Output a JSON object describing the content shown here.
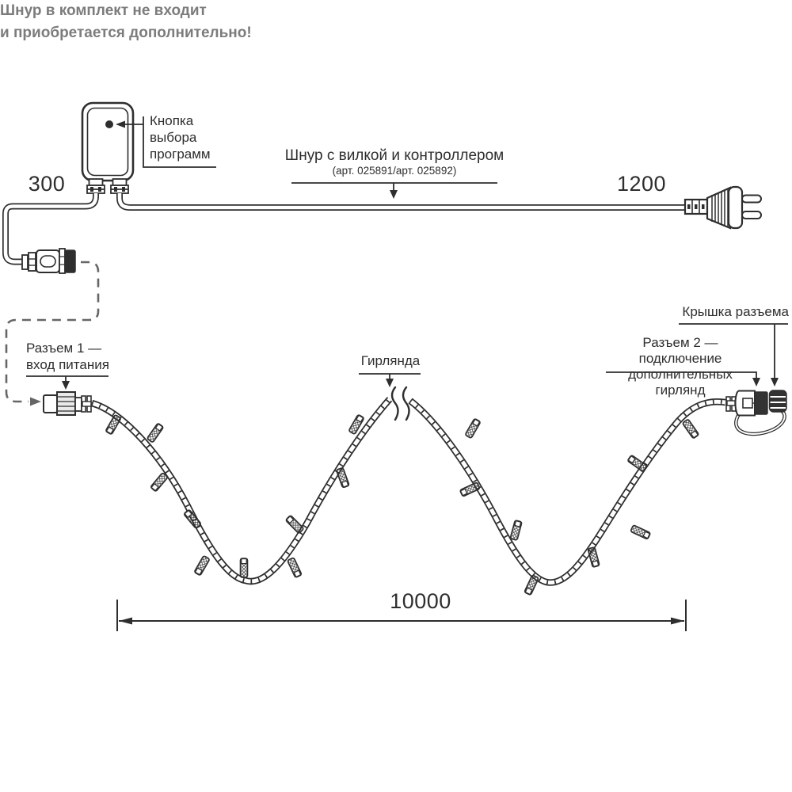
{
  "diagram": {
    "controller": {
      "button_label": "Кнопка выбора программ"
    },
    "cord": {
      "label": "Шнур с вилкой и контроллером",
      "sku": "(арт. 025891/арт. 025892)"
    },
    "dimensions": {
      "left_cord": "300",
      "right_cord": "1200",
      "garland": "10000"
    },
    "note": {
      "line1": "Шнур в комплект не входит",
      "line2": "и приобретается дополнительно!"
    },
    "connector1": {
      "line1": "Разъем 1 —",
      "line2": "вход питания"
    },
    "garland": {
      "label": "Гирлянда"
    },
    "connector2": {
      "line1": "Разъем 2 — подключение",
      "line2": "дополнительных гирлянд"
    },
    "cap": {
      "label": "Крышка разъема"
    },
    "colors": {
      "ink": "#2e2e2e",
      "note_gray": "#7c7c7c",
      "dash_gray": "#666666"
    }
  }
}
